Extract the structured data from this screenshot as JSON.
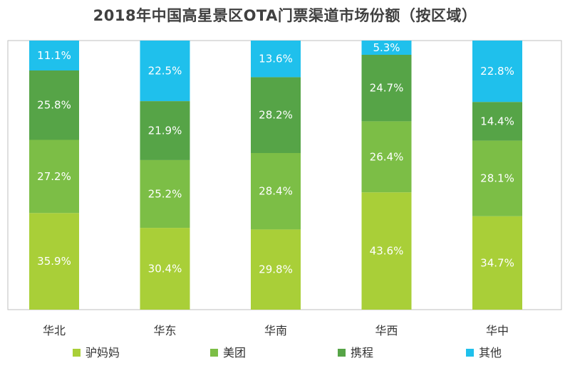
{
  "chart_data": {
    "type": "bar",
    "stacked": true,
    "title": "2018年中国高星景区OTA门票渠道市场份额（按区域）",
    "categories": [
      "华北",
      "华东",
      "华南",
      "华西",
      "华中"
    ],
    "series": [
      {
        "name": "驴妈妈",
        "color": "#a9cf38",
        "values": [
          35.9,
          30.4,
          29.8,
          43.6,
          34.7
        ]
      },
      {
        "name": "美团",
        "color": "#7cbe46",
        "values": [
          27.2,
          25.2,
          28.4,
          26.4,
          28.1
        ]
      },
      {
        "name": "携程",
        "color": "#56a447",
        "values": [
          25.8,
          21.9,
          28.2,
          24.7,
          14.4
        ]
      },
      {
        "name": "其他",
        "color": "#1fc0ec",
        "values": [
          11.1,
          22.5,
          13.6,
          5.3,
          22.8
        ]
      }
    ],
    "value_suffix": "%",
    "ylim": [
      0,
      100
    ],
    "grid": false,
    "legend_position": "bottom"
  }
}
